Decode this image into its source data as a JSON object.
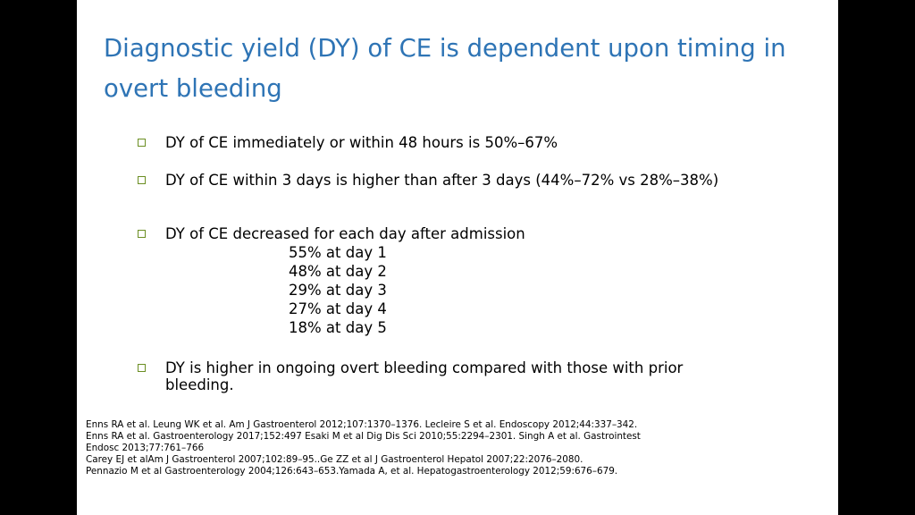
{
  "slide": {
    "title": "Diagnostic yield (DY) of CE is dependent upon timing in overt bleeding",
    "bullets": [
      "DY of CE immediately or within 48 hours is 50%–67%",
      "DY of CE within 3 days is higher than after 3 days (44%–72% vs 28%–38%)",
      "DY of CE decreased for each day after admission",
      "DY is higher in ongoing overt bleeding compared with those with prior bleeding."
    ],
    "daily_values": [
      "55% at day 1",
      "48% at day 2",
      "29% at day 3",
      "27% at day 4",
      "18% at day 5"
    ],
    "references": [
      "Enns RA et al. Leung WK et al. Am J Gastroenterol 2012;107:1370–1376. Lecleire S et al. Endoscopy 2012;44:337–342.",
      "Enns RA et al. Gastroenterology 2017;152:497 Esaki M et al Dig Dis Sci 2010;55:2294–2301. Singh A et al. Gastrointest Endosc 2013;77:761–766",
      "Carey EJ et alAm J Gastroenterol 2007;102:89–95..Ge ZZ et al  J Gastroenterol Hepatol 2007;22:2076–2080.",
      "Pennazio M et al Gastroenterology 2004;126:643–653.Yamada A, et al. Hepatogastroenterology 2012;59:676–679."
    ]
  }
}
